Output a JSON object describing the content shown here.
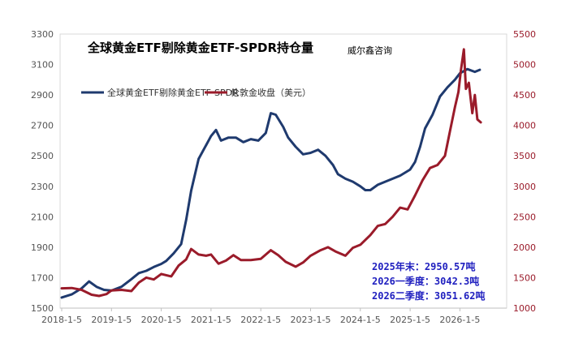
{
  "chart_data": {
    "type": "line",
    "title": "全球黄金ETF剔除黄金ETF-SPDR持仓量",
    "source": "威尔鑫咨询",
    "x_ticks": [
      "2018-1-5",
      "2019-1-5",
      "2020-1-5",
      "2021-1-5",
      "2022-1-5",
      "2023-1-5",
      "2024-1-5",
      "2025-1-5",
      "2026-1-5"
    ],
    "y_left": {
      "min": 1500,
      "max": 3300,
      "ticks": [
        1500,
        1700,
        1900,
        2100,
        2300,
        2500,
        2700,
        2900,
        3100,
        3300
      ]
    },
    "y_right": {
      "min": 1000,
      "max": 5500,
      "ticks": [
        1000,
        1500,
        2000,
        2500,
        3000,
        3500,
        4000,
        4500,
        5000,
        5500
      ]
    },
    "legend_placement": "top-left",
    "series": [
      {
        "name": "全球黄金ETF剔除黄金ETF-SPDR",
        "axis": "left",
        "color": "#1f3a6e",
        "points": [
          [
            2018.0,
            1570
          ],
          [
            2018.2,
            1590
          ],
          [
            2018.4,
            1630
          ],
          [
            2018.55,
            1675
          ],
          [
            2018.7,
            1640
          ],
          [
            2018.85,
            1620
          ],
          [
            2019.0,
            1615
          ],
          [
            2019.2,
            1640
          ],
          [
            2019.4,
            1690
          ],
          [
            2019.55,
            1730
          ],
          [
            2019.7,
            1745
          ],
          [
            2019.85,
            1770
          ],
          [
            2020.0,
            1790
          ],
          [
            2020.1,
            1810
          ],
          [
            2020.25,
            1860
          ],
          [
            2020.4,
            1920
          ],
          [
            2020.5,
            2080
          ],
          [
            2020.6,
            2270
          ],
          [
            2020.75,
            2480
          ],
          [
            2020.9,
            2570
          ],
          [
            2021.0,
            2630
          ],
          [
            2021.1,
            2670
          ],
          [
            2021.2,
            2600
          ],
          [
            2021.35,
            2620
          ],
          [
            2021.5,
            2620
          ],
          [
            2021.65,
            2590
          ],
          [
            2021.8,
            2610
          ],
          [
            2021.95,
            2600
          ],
          [
            2022.1,
            2650
          ],
          [
            2022.2,
            2780
          ],
          [
            2022.3,
            2770
          ],
          [
            2022.45,
            2690
          ],
          [
            2022.55,
            2620
          ],
          [
            2022.7,
            2560
          ],
          [
            2022.85,
            2510
          ],
          [
            2023.0,
            2520
          ],
          [
            2023.15,
            2540
          ],
          [
            2023.3,
            2500
          ],
          [
            2023.45,
            2440
          ],
          [
            2023.55,
            2380
          ],
          [
            2023.7,
            2350
          ],
          [
            2023.85,
            2330
          ],
          [
            2024.0,
            2300
          ],
          [
            2024.1,
            2275
          ],
          [
            2024.2,
            2275
          ],
          [
            2024.35,
            2310
          ],
          [
            2024.5,
            2330
          ],
          [
            2024.65,
            2350
          ],
          [
            2024.8,
            2370
          ],
          [
            2025.0,
            2410
          ],
          [
            2025.1,
            2460
          ],
          [
            2025.2,
            2560
          ],
          [
            2025.3,
            2680
          ],
          [
            2025.45,
            2770
          ],
          [
            2025.6,
            2890
          ],
          [
            2025.75,
            2950
          ],
          [
            2025.9,
            3000
          ],
          [
            2026.0,
            3042
          ],
          [
            2026.15,
            3070
          ],
          [
            2026.3,
            3052
          ],
          [
            2026.4,
            3065
          ]
        ]
      },
      {
        "name": "伦敦金收盘（美元）",
        "axis": "right",
        "color": "#9a1b2a",
        "points": [
          [
            2018.0,
            1325
          ],
          [
            2018.2,
            1330
          ],
          [
            2018.4,
            1300
          ],
          [
            2018.6,
            1220
          ],
          [
            2018.75,
            1200
          ],
          [
            2018.9,
            1230
          ],
          [
            2019.0,
            1290
          ],
          [
            2019.2,
            1300
          ],
          [
            2019.4,
            1280
          ],
          [
            2019.55,
            1420
          ],
          [
            2019.7,
            1500
          ],
          [
            2019.85,
            1470
          ],
          [
            2020.0,
            1560
          ],
          [
            2020.2,
            1520
          ],
          [
            2020.35,
            1700
          ],
          [
            2020.5,
            1800
          ],
          [
            2020.6,
            1970
          ],
          [
            2020.75,
            1880
          ],
          [
            2020.9,
            1860
          ],
          [
            2021.0,
            1880
          ],
          [
            2021.15,
            1730
          ],
          [
            2021.3,
            1780
          ],
          [
            2021.45,
            1870
          ],
          [
            2021.6,
            1790
          ],
          [
            2021.8,
            1790
          ],
          [
            2022.0,
            1810
          ],
          [
            2022.2,
            1950
          ],
          [
            2022.35,
            1870
          ],
          [
            2022.5,
            1760
          ],
          [
            2022.7,
            1680
          ],
          [
            2022.85,
            1750
          ],
          [
            2023.0,
            1860
          ],
          [
            2023.2,
            1950
          ],
          [
            2023.35,
            2000
          ],
          [
            2023.5,
            1930
          ],
          [
            2023.7,
            1860
          ],
          [
            2023.85,
            1990
          ],
          [
            2024.0,
            2040
          ],
          [
            2024.2,
            2200
          ],
          [
            2024.35,
            2350
          ],
          [
            2024.5,
            2380
          ],
          [
            2024.65,
            2500
          ],
          [
            2024.8,
            2650
          ],
          [
            2024.95,
            2620
          ],
          [
            2025.1,
            2850
          ],
          [
            2025.25,
            3100
          ],
          [
            2025.4,
            3300
          ],
          [
            2025.55,
            3350
          ],
          [
            2025.7,
            3500
          ],
          [
            2025.8,
            3900
          ],
          [
            2025.9,
            4300
          ],
          [
            2025.97,
            4550
          ],
          [
            2026.02,
            4900
          ],
          [
            2026.08,
            5250
          ],
          [
            2026.12,
            4600
          ],
          [
            2026.18,
            4700
          ],
          [
            2026.25,
            4200
          ],
          [
            2026.3,
            4500
          ],
          [
            2026.35,
            4100
          ],
          [
            2026.42,
            4050
          ]
        ]
      }
    ],
    "annotations": [
      "2025年末：2950.57吨",
      "2026一季度：3042.3吨",
      "2026二季度：3051.62吨"
    ]
  }
}
